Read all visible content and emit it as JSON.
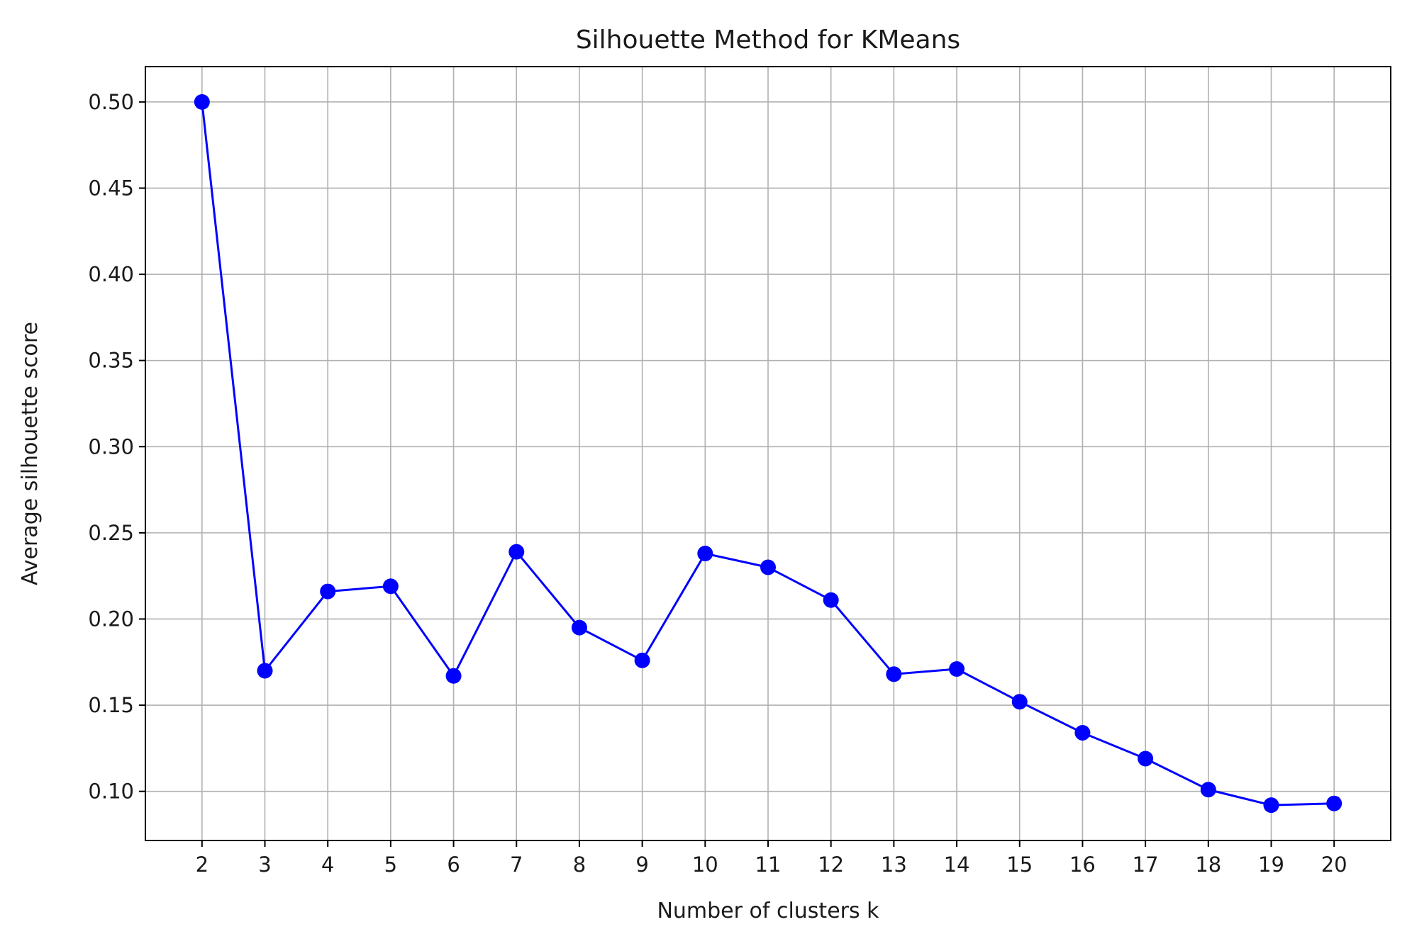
{
  "chart_data": {
    "type": "line",
    "title": "Silhouette Method for KMeans",
    "xlabel": "Number of clusters k",
    "ylabel": "Average silhouette score",
    "x": [
      2,
      3,
      4,
      5,
      6,
      7,
      8,
      9,
      10,
      11,
      12,
      13,
      14,
      15,
      16,
      17,
      18,
      19,
      20
    ],
    "series": [
      {
        "values": [
          0.5,
          0.17,
          0.216,
          0.219,
          0.167,
          0.239,
          0.195,
          0.176,
          0.238,
          0.23,
          0.211,
          0.168,
          0.171,
          0.152,
          0.134,
          0.119,
          0.101,
          0.092,
          0.093
        ],
        "color": "#0000ff",
        "marker": "circle"
      }
    ],
    "xticks": [
      "2",
      "3",
      "4",
      "5",
      "6",
      "7",
      "8",
      "9",
      "10",
      "11",
      "12",
      "13",
      "14",
      "15",
      "16",
      "17",
      "18",
      "19",
      "20"
    ],
    "yticks": [
      "0.10",
      "0.15",
      "0.20",
      "0.25",
      "0.30",
      "0.35",
      "0.40",
      "0.45",
      "0.50"
    ],
    "ytick_values": [
      0.1,
      0.15,
      0.2,
      0.25,
      0.3,
      0.35,
      0.4,
      0.45,
      0.5
    ],
    "xlim": [
      1.1,
      20.9
    ],
    "ylim": [
      0.0715,
      0.5205
    ],
    "grid": true,
    "grid_color": "#b0b0b0",
    "axis_color": "#000000"
  }
}
